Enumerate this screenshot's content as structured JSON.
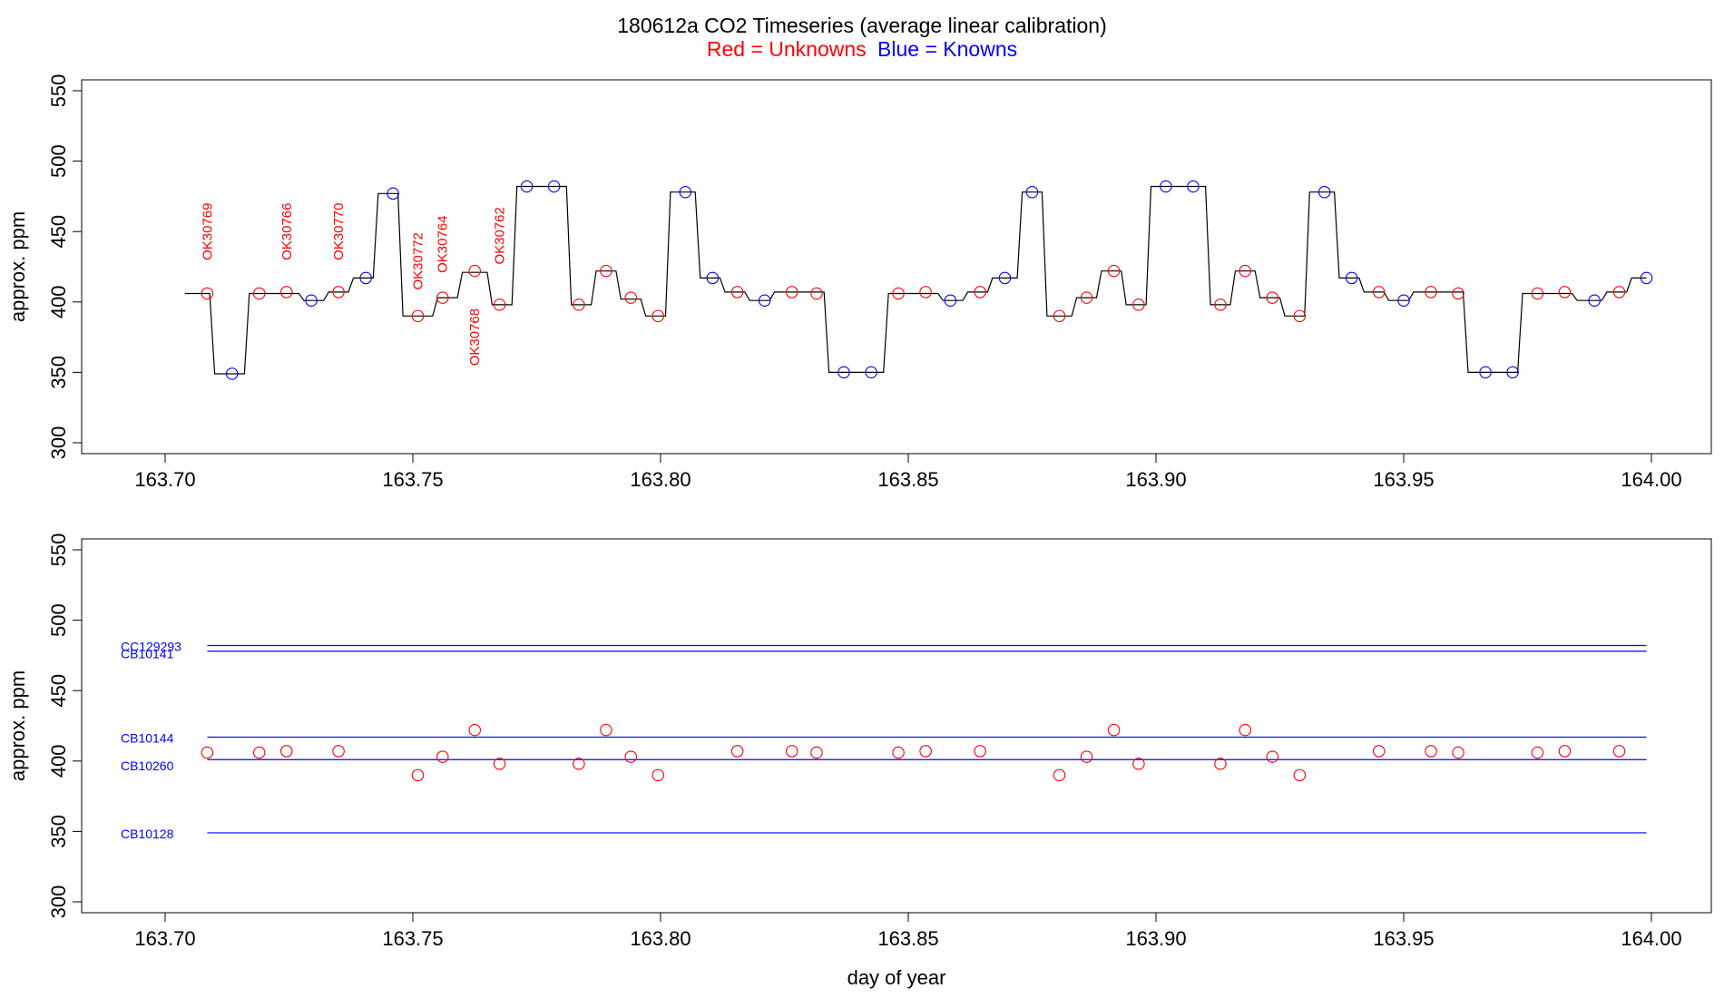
{
  "title": "180612a   CO2 Timeseries (average linear calibration)",
  "legend": {
    "red_label": "Red = Unknowns",
    "blue_label": "Blue = Knowns"
  },
  "colors": {
    "unknown": "#ff0000",
    "known": "#0000ff",
    "trace": "#000000",
    "axis": "#000000"
  },
  "chart_data": [
    {
      "type": "line",
      "panel": "top",
      "xlabel": "",
      "ylabel": "approx. ppm",
      "xlim": [
        163.7,
        164.0
      ],
      "ylim": [
        300,
        550
      ],
      "xticks": [
        "163.70",
        "163.75",
        "163.80",
        "163.85",
        "163.90",
        "163.95",
        "164.00"
      ],
      "yticks": [
        "300",
        "350",
        "400",
        "450",
        "500",
        "550"
      ],
      "trace_levels": [
        [
          163.704,
          406
        ],
        [
          163.709,
          406
        ],
        [
          163.71,
          349
        ],
        [
          163.716,
          349
        ],
        [
          163.717,
          406
        ],
        [
          163.727,
          406
        ],
        [
          163.728,
          401
        ],
        [
          163.732,
          401
        ],
        [
          163.733,
          407
        ],
        [
          163.737,
          407
        ],
        [
          163.738,
          417
        ],
        [
          163.742,
          417
        ],
        [
          163.743,
          477
        ],
        [
          163.747,
          477
        ],
        [
          163.748,
          390
        ],
        [
          163.754,
          390
        ],
        [
          163.755,
          403
        ],
        [
          163.759,
          403
        ],
        [
          163.76,
          421
        ],
        [
          163.765,
          421
        ],
        [
          163.766,
          398
        ],
        [
          163.77,
          398
        ],
        [
          163.771,
          482
        ],
        [
          163.781,
          482
        ],
        [
          163.782,
          398
        ],
        [
          163.786,
          398
        ],
        [
          163.787,
          422
        ],
        [
          163.791,
          422
        ],
        [
          163.792,
          402
        ],
        [
          163.796,
          402
        ],
        [
          163.797,
          390
        ],
        [
          163.801,
          390
        ],
        [
          163.802,
          478
        ],
        [
          163.807,
          478
        ],
        [
          163.808,
          417
        ],
        [
          163.812,
          417
        ],
        [
          163.813,
          407
        ],
        [
          163.817,
          407
        ],
        [
          163.818,
          401
        ],
        [
          163.822,
          401
        ],
        [
          163.823,
          407
        ],
        [
          163.833,
          407
        ],
        [
          163.834,
          350
        ],
        [
          163.845,
          350
        ],
        [
          163.846,
          406
        ],
        [
          163.856,
          406
        ],
        [
          163.857,
          401
        ],
        [
          163.861,
          401
        ],
        [
          163.862,
          407
        ],
        [
          163.866,
          407
        ],
        [
          163.867,
          417
        ],
        [
          163.872,
          417
        ],
        [
          163.873,
          478
        ],
        [
          163.877,
          478
        ],
        [
          163.878,
          390
        ],
        [
          163.883,
          390
        ],
        [
          163.884,
          403
        ],
        [
          163.888,
          403
        ],
        [
          163.889,
          422
        ],
        [
          163.893,
          422
        ],
        [
          163.894,
          398
        ],
        [
          163.898,
          398
        ],
        [
          163.899,
          482
        ],
        [
          163.91,
          482
        ],
        [
          163.911,
          398
        ],
        [
          163.915,
          398
        ],
        [
          163.916,
          422
        ],
        [
          163.92,
          422
        ],
        [
          163.921,
          403
        ],
        [
          163.925,
          403
        ],
        [
          163.926,
          390
        ],
        [
          163.93,
          390
        ],
        [
          163.931,
          478
        ],
        [
          163.936,
          478
        ],
        [
          163.937,
          417
        ],
        [
          163.941,
          417
        ],
        [
          163.942,
          407
        ],
        [
          163.946,
          407
        ],
        [
          163.947,
          401
        ],
        [
          163.951,
          401
        ],
        [
          163.952,
          407
        ],
        [
          163.962,
          407
        ],
        [
          163.963,
          350
        ],
        [
          163.973,
          350
        ],
        [
          163.974,
          406
        ],
        [
          163.984,
          406
        ],
        [
          163.985,
          401
        ],
        [
          163.99,
          401
        ],
        [
          163.991,
          407
        ],
        [
          163.995,
          407
        ],
        [
          163.996,
          417
        ],
        [
          163.999,
          417
        ]
      ],
      "series": [
        {
          "name": "Unknowns",
          "color": "red",
          "points": [
            [
              163.7085,
              406
            ],
            [
              163.719,
              406
            ],
            [
              163.7245,
              407
            ],
            [
              163.735,
              407
            ],
            [
              163.751,
              390
            ],
            [
              163.756,
              403
            ],
            [
              163.7625,
              422
            ],
            [
              163.7675,
              398
            ],
            [
              163.7835,
              398
            ],
            [
              163.789,
              422
            ],
            [
              163.794,
              403
            ],
            [
              163.7995,
              390
            ],
            [
              163.8155,
              407
            ],
            [
              163.8265,
              407
            ],
            [
              163.8315,
              406
            ],
            [
              163.848,
              406
            ],
            [
              163.8535,
              407
            ],
            [
              163.8645,
              407
            ],
            [
              163.8805,
              390
            ],
            [
              163.886,
              403
            ],
            [
              163.8915,
              422
            ],
            [
              163.8965,
              398
            ],
            [
              163.913,
              398
            ],
            [
              163.918,
              422
            ],
            [
              163.9235,
              403
            ],
            [
              163.929,
              390
            ],
            [
              163.945,
              407
            ],
            [
              163.9555,
              407
            ],
            [
              163.961,
              406
            ],
            [
              163.977,
              406
            ],
            [
              163.9825,
              407
            ],
            [
              163.9935,
              407
            ]
          ]
        },
        {
          "name": "Knowns",
          "color": "blue",
          "points": [
            [
              163.7135,
              349
            ],
            [
              163.7295,
              401
            ],
            [
              163.7405,
              417
            ],
            [
              163.746,
              477
            ],
            [
              163.773,
              482
            ],
            [
              163.7785,
              482
            ],
            [
              163.805,
              478
            ],
            [
              163.8105,
              417
            ],
            [
              163.821,
              401
            ],
            [
              163.837,
              350
            ],
            [
              163.8425,
              350
            ],
            [
              163.8585,
              401
            ],
            [
              163.8695,
              417
            ],
            [
              163.875,
              478
            ],
            [
              163.902,
              482
            ],
            [
              163.9075,
              482
            ],
            [
              163.934,
              478
            ],
            [
              163.9395,
              417
            ],
            [
              163.95,
              401
            ],
            [
              163.9665,
              350
            ],
            [
              163.972,
              350
            ],
            [
              163.9885,
              401
            ],
            [
              163.999,
              417
            ]
          ]
        }
      ],
      "annotations": [
        {
          "text": "OK30769",
          "x": 163.7085,
          "y": 450
        },
        {
          "text": "OK30766",
          "x": 163.7245,
          "y": 450
        },
        {
          "text": "OK30770",
          "x": 163.735,
          "y": 450
        },
        {
          "text": "OK30772",
          "x": 163.751,
          "y": 429
        },
        {
          "text": "OK30764",
          "x": 163.756,
          "y": 441
        },
        {
          "text": "OK30768",
          "x": 163.7625,
          "y": 375
        },
        {
          "text": "OK30762",
          "x": 163.7675,
          "y": 447
        }
      ]
    },
    {
      "type": "scatter",
      "panel": "bottom",
      "xlabel": "day of year",
      "ylabel": "approx. ppm",
      "xlim": [
        163.7,
        164.0
      ],
      "ylim": [
        300,
        550
      ],
      "xticks": [
        "163.70",
        "163.75",
        "163.80",
        "163.85",
        "163.90",
        "163.95",
        "164.00"
      ],
      "yticks": [
        "300",
        "350",
        "400",
        "450",
        "500",
        "550"
      ],
      "reference_lines": [
        {
          "name": "CC129293",
          "value": 482,
          "x_start": 163.7085,
          "x_end": 163.999
        },
        {
          "name": "CB10141",
          "value": 478,
          "x_start": 163.7085,
          "x_end": 163.999
        },
        {
          "name": "CB10144",
          "value": 417,
          "x_start": 163.7085,
          "x_end": 163.999
        },
        {
          "name": "CB10260",
          "value": 401,
          "x_start": 163.7085,
          "x_end": 163.999
        },
        {
          "name": "CB10128",
          "value": 349,
          "x_start": 163.7085,
          "x_end": 163.999
        }
      ],
      "series": [
        {
          "name": "Unknowns",
          "color": "red",
          "points": [
            [
              163.7085,
              406
            ],
            [
              163.719,
              406
            ],
            [
              163.7245,
              407
            ],
            [
              163.735,
              407
            ],
            [
              163.751,
              390
            ],
            [
              163.756,
              403
            ],
            [
              163.7625,
              422
            ],
            [
              163.7675,
              398
            ],
            [
              163.7835,
              398
            ],
            [
              163.789,
              422
            ],
            [
              163.794,
              403
            ],
            [
              163.7995,
              390
            ],
            [
              163.8155,
              407
            ],
            [
              163.8265,
              407
            ],
            [
              163.8315,
              406
            ],
            [
              163.848,
              406
            ],
            [
              163.8535,
              407
            ],
            [
              163.8645,
              407
            ],
            [
              163.8805,
              390
            ],
            [
              163.886,
              403
            ],
            [
              163.8915,
              422
            ],
            [
              163.8965,
              398
            ],
            [
              163.913,
              398
            ],
            [
              163.918,
              422
            ],
            [
              163.9235,
              403
            ],
            [
              163.929,
              390
            ],
            [
              163.945,
              407
            ],
            [
              163.9555,
              407
            ],
            [
              163.961,
              406
            ],
            [
              163.977,
              406
            ],
            [
              163.9825,
              407
            ],
            [
              163.9935,
              407
            ]
          ]
        }
      ]
    }
  ]
}
